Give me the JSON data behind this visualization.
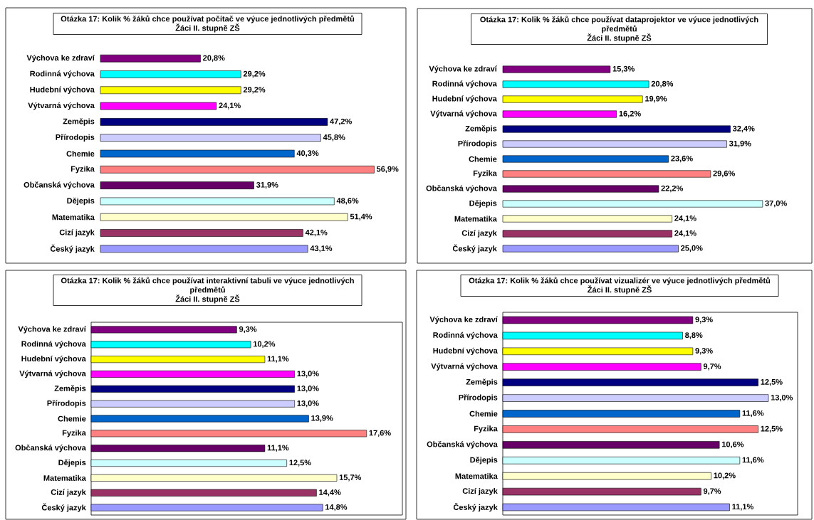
{
  "chart_data": [
    {
      "type": "bar",
      "orientation": "horizontal",
      "title": "Otázka 17: Kolik % žáků chce používat počítač ve výuce jednotlivých předmětů",
      "subtitle": "Žáci II. stupně ZŠ",
      "categories": [
        "Výchova ke zdraví",
        "Rodinná výchova",
        "Hudební výchova",
        "Výtvarná výchova",
        "Zeměpis",
        "Přírodopis",
        "Chemie",
        "Fyzika",
        "Občanská výchova",
        "Dějepis",
        "Matematika",
        "Cizí jazyk",
        "Český jazyk"
      ],
      "values": [
        20.8,
        29.2,
        29.2,
        24.1,
        47.2,
        45.8,
        40.3,
        56.9,
        31.9,
        48.6,
        51.4,
        42.1,
        43.1
      ],
      "value_labels": [
        "20,8%",
        "29,2%",
        "29,2%",
        "24,1%",
        "47,2%",
        "45,8%",
        "40,3%",
        "56,9%",
        "31,9%",
        "48,6%",
        "51,4%",
        "42,1%",
        "43,1%"
      ],
      "colors": [
        "#800080",
        "#00ffff",
        "#ffff00",
        "#ff00ff",
        "#000080",
        "#ccccff",
        "#0066cc",
        "#ff8080",
        "#660066",
        "#ccffff",
        "#ffffcc",
        "#993366",
        "#9999ff"
      ]
    },
    {
      "type": "bar",
      "orientation": "horizontal",
      "title": "Otázka 17: Kolik % žáků chce používat dataprojektor ve výuce jednotlivých předmětů",
      "subtitle": "Žáci II. stupně ZŠ",
      "categories": [
        "Výchova ke zdraví",
        "Rodinná výchova",
        "Hudební výchova",
        "Výtvarná výchova",
        "Zeměpis",
        "Přírodopis",
        "Chemie",
        "Fyzika",
        "Občanská výchova",
        "Dějepis",
        "Matematika",
        "Cizí jazyk",
        "Český jazyk"
      ],
      "values": [
        15.3,
        20.8,
        19.9,
        16.2,
        32.4,
        31.9,
        23.6,
        29.6,
        22.2,
        37.0,
        24.1,
        24.1,
        25.0
      ],
      "value_labels": [
        "15,3%",
        "20,8%",
        "19,9%",
        "16,2%",
        "32,4%",
        "31,9%",
        "23,6%",
        "29,6%",
        "22,2%",
        "37,0%",
        "24,1%",
        "24,1%",
        "25,0%"
      ],
      "colors": [
        "#800080",
        "#00ffff",
        "#ffff00",
        "#ff00ff",
        "#000080",
        "#ccccff",
        "#0066cc",
        "#ff8080",
        "#660066",
        "#ccffff",
        "#ffffcc",
        "#993366",
        "#9999ff"
      ]
    },
    {
      "type": "bar",
      "orientation": "horizontal",
      "title": "Otázka 17: Kolik % žáků chce používat interaktivní tabuli ve výuce jednotlivých předmětů",
      "subtitle": "Žáci II. stupně ZŠ",
      "categories": [
        "Výchova ke zdraví",
        "Rodinná výchova",
        "Hudební výchova",
        "Výtvarná výchova",
        "Zeměpis",
        "Přírodopis",
        "Chemie",
        "Fyzika",
        "Občanská výchova",
        "Dějepis",
        "Matematika",
        "Cizí jazyk",
        "Český jazyk"
      ],
      "values": [
        9.3,
        10.2,
        11.1,
        13.0,
        13.0,
        13.0,
        13.9,
        17.6,
        11.1,
        12.5,
        15.7,
        14.4,
        14.8
      ],
      "value_labels": [
        "9,3%",
        "10,2%",
        "11,1%",
        "13,0%",
        "13,0%",
        "13,0%",
        "13,9%",
        "17,6%",
        "11,1%",
        "12,5%",
        "15,7%",
        "14,4%",
        "14,8%"
      ],
      "colors": [
        "#800080",
        "#00ffff",
        "#ffff00",
        "#ff00ff",
        "#000080",
        "#ccccff",
        "#0066cc",
        "#ff8080",
        "#660066",
        "#ccffff",
        "#ffffcc",
        "#993366",
        "#9999ff"
      ]
    },
    {
      "type": "bar",
      "orientation": "horizontal",
      "title": "Otázka 17: Kolik % žáků chce používat vizualizér ve výuce jednotlivých předmětů",
      "subtitle": "Žáci II. stupně ZŠ",
      "categories": [
        "Výchova ke zdraví",
        "Rodinná výchova",
        "Hudební výchova",
        "Výtvarná výchova",
        "Zeměpis",
        "Přírodopis",
        "Chemie",
        "Fyzika",
        "Občanská výchova",
        "Dějepis",
        "Matematika",
        "Cizí jazyk",
        "Český jazyk"
      ],
      "values": [
        9.3,
        8.8,
        9.3,
        9.7,
        12.5,
        13.0,
        11.6,
        12.5,
        10.6,
        11.6,
        10.2,
        9.7,
        11.1
      ],
      "value_labels": [
        "9,3%",
        "8,8%",
        "9,3%",
        "9,7%",
        "12,5%",
        "13,0%",
        "11,6%",
        "12,5%",
        "10,6%",
        "11,6%",
        "10,2%",
        "9,7%",
        "11,1%"
      ],
      "colors": [
        "#800080",
        "#00ffff",
        "#ffff00",
        "#ff00ff",
        "#000080",
        "#ccccff",
        "#0066cc",
        "#ff8080",
        "#660066",
        "#ccffff",
        "#ffffcc",
        "#993366",
        "#9999ff"
      ]
    }
  ]
}
